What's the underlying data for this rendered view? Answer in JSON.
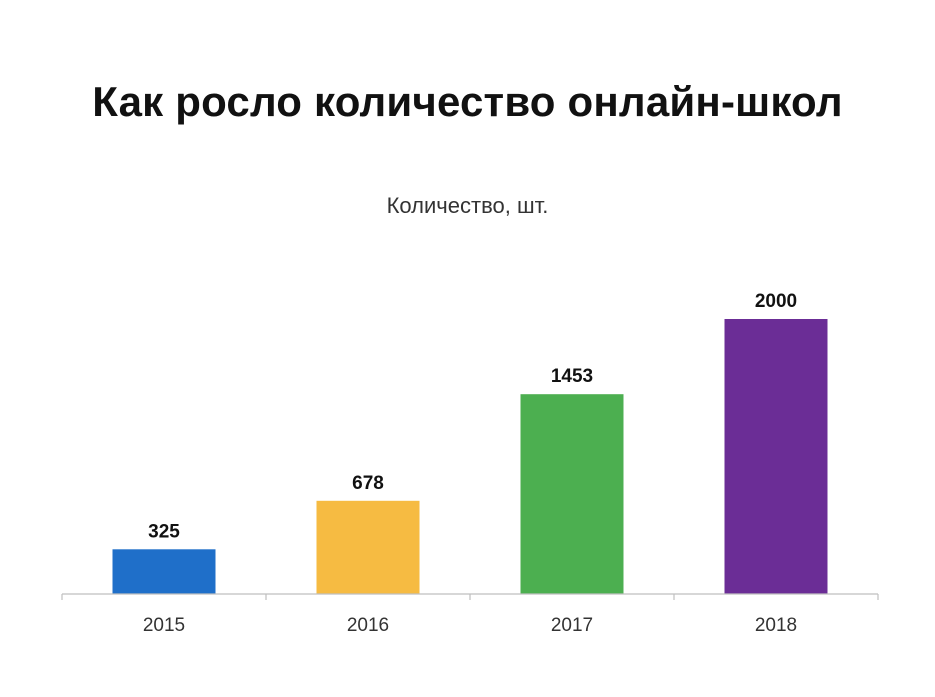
{
  "chart_data": {
    "type": "bar",
    "title": "Как росло количество онлайн-школ",
    "subtitle": "Количество, шт.",
    "xlabel": "",
    "ylabel": "",
    "categories": [
      "2015",
      "2016",
      "2017",
      "2018"
    ],
    "values": [
      325,
      678,
      1453,
      2000
    ],
    "colors": [
      "#1F6FC9",
      "#F6BB42",
      "#4CAF50",
      "#6B2D96"
    ],
    "ylim": [
      0,
      2000
    ],
    "data_labels": true,
    "grid": false,
    "legend": "none"
  }
}
